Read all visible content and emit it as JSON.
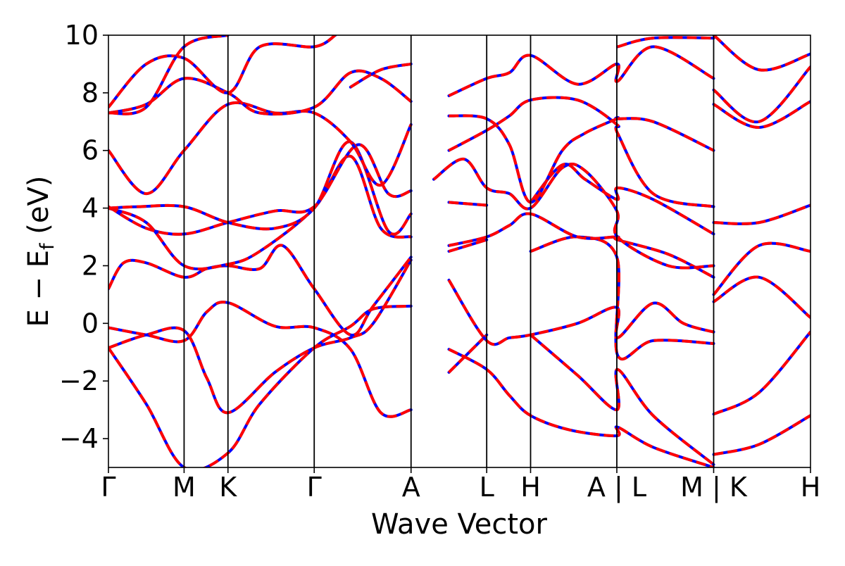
{
  "chart_data": {
    "type": "line",
    "xlabel": "Wave Vector",
    "ylabel_main": "E − E",
    "ylabel_sub": "f",
    "ylabel_unit": " (eV)",
    "ylim": [
      -5,
      10
    ],
    "yticks": [
      -4,
      -2,
      0,
      2,
      4,
      6,
      8,
      10
    ],
    "ytick_labels": [
      "−4",
      "−2",
      "0",
      "2",
      "4",
      "6",
      "8",
      "10"
    ],
    "grid": false,
    "colors": {
      "blue": "#0000ff",
      "red": "#ff0000"
    },
    "segment_breaks": [
      4.2,
      5.3
    ],
    "kpoints": [
      {
        "label": "Γ",
        "x": 0
      },
      {
        "label": "M",
        "x": 1.0
      },
      {
        "label": "K",
        "x": 1.58
      },
      {
        "label": "Γ",
        "x": 2.72
      },
      {
        "label": "A",
        "x": 4.0
      },
      {
        "label": "L",
        "x": 5.0
      },
      {
        "label": "H",
        "x": 5.58
      },
      {
        "label": "A | L",
        "x": 6.72
      },
      {
        "label": "M | K",
        "x": 8.0
      },
      {
        "label": "H",
        "x": 9.28
      }
    ],
    "bands": [
      [
        [
          0,
          -0.85
        ],
        [
          0.5,
          -2.8
        ],
        [
          1.0,
          -5.0
        ],
        [
          1.58,
          -4.5
        ],
        [
          2.0,
          -2.8
        ],
        [
          2.72,
          -0.85
        ],
        [
          3.2,
          -0.1
        ],
        [
          3.5,
          0.5
        ],
        [
          4.0,
          0.6
        ],
        [
          4.5,
          -0.9
        ],
        [
          5.0,
          -1.6
        ],
        [
          5.3,
          -2.5
        ],
        [
          5.58,
          -3.2
        ],
        [
          6.1,
          -3.7
        ],
        [
          6.72,
          -3.9
        ],
        [
          6.73,
          -3.6
        ],
        [
          7.2,
          -4.3
        ],
        [
          8.0,
          -5.0
        ]
      ],
      [
        [
          0,
          -0.15
        ],
        [
          0.5,
          -0.4
        ],
        [
          1.0,
          -0.6
        ],
        [
          1.3,
          0.4
        ],
        [
          1.58,
          0.72
        ],
        [
          2.2,
          -0.1
        ],
        [
          2.72,
          -0.15
        ],
        [
          3.2,
          -0.9
        ],
        [
          3.6,
          -3.1
        ],
        [
          4.0,
          -3.0
        ],
        [
          4.5,
          -1.7
        ],
        [
          5.0,
          -0.4
        ],
        [
          5.58,
          -0.4
        ],
        [
          6.2,
          -1.8
        ],
        [
          6.72,
          -3.0
        ],
        [
          6.73,
          -1.6
        ],
        [
          7.2,
          -3.2
        ],
        [
          8.0,
          -4.9
        ]
      ],
      [
        [
          0,
          -0.85
        ],
        [
          0.5,
          -0.4
        ],
        [
          1.0,
          -0.25
        ],
        [
          1.3,
          -1.9
        ],
        [
          1.58,
          -3.1
        ],
        [
          2.2,
          -1.7
        ],
        [
          2.72,
          -0.85
        ],
        [
          3.2,
          -0.5
        ],
        [
          3.5,
          0.0
        ],
        [
          4.0,
          2.2
        ],
        [
          4.5,
          2.5
        ],
        [
          5.0,
          2.9
        ],
        [
          5.58,
          2.5
        ],
        [
          6.2,
          3.0
        ],
        [
          6.72,
          2.3
        ],
        [
          6.73,
          -1.1
        ],
        [
          7.2,
          -0.6
        ],
        [
          8.0,
          -0.7
        ]
      ],
      [
        [
          0,
          1.2
        ],
        [
          0.2,
          2.1
        ],
        [
          0.5,
          2.1
        ],
        [
          1.0,
          1.6
        ],
        [
          1.3,
          1.9
        ],
        [
          1.58,
          2.0
        ],
        [
          2.0,
          1.9
        ],
        [
          2.3,
          2.7
        ],
        [
          2.72,
          1.2
        ],
        [
          3.2,
          -0.4
        ],
        [
          3.5,
          0.6
        ],
        [
          4.0,
          2.3
        ],
        [
          4.5,
          1.5
        ],
        [
          5.0,
          -0.6
        ],
        [
          5.3,
          -0.5
        ],
        [
          5.58,
          -0.4
        ],
        [
          6.2,
          0.0
        ],
        [
          6.72,
          0.55
        ],
        [
          6.73,
          -0.5
        ],
        [
          7.2,
          0.7
        ],
        [
          7.6,
          0.0
        ],
        [
          8.0,
          -0.3
        ]
      ],
      [
        [
          0,
          4.0
        ],
        [
          0.5,
          3.5
        ],
        [
          1.0,
          2.0
        ],
        [
          1.58,
          2.05
        ],
        [
          2.0,
          2.5
        ],
        [
          2.72,
          4.0
        ],
        [
          3.2,
          5.8
        ],
        [
          3.6,
          3.3
        ],
        [
          4.0,
          3.0
        ],
        [
          4.5,
          2.7
        ],
        [
          5.0,
          3.0
        ],
        [
          5.3,
          3.4
        ],
        [
          5.58,
          3.8
        ],
        [
          6.2,
          3.0
        ],
        [
          6.72,
          3.0
        ],
        [
          6.73,
          2.9
        ],
        [
          7.4,
          2.4
        ],
        [
          8.0,
          1.6
        ]
      ],
      [
        [
          0,
          4.05
        ],
        [
          0.5,
          3.3
        ],
        [
          1.0,
          3.1
        ],
        [
          1.58,
          3.5
        ],
        [
          2.2,
          3.9
        ],
        [
          2.72,
          4.05
        ],
        [
          3.3,
          6.2
        ],
        [
          3.7,
          4.5
        ],
        [
          4.0,
          4.6
        ],
        [
          4.3,
          5.0
        ],
        [
          4.7,
          5.7
        ],
        [
          5.0,
          4.7
        ],
        [
          5.3,
          4.5
        ],
        [
          5.58,
          4.0
        ],
        [
          6.0,
          5.4
        ],
        [
          6.3,
          5.3
        ],
        [
          6.72,
          3.9
        ],
        [
          6.73,
          3.0
        ],
        [
          7.4,
          2.0
        ],
        [
          8.0,
          2.0
        ]
      ],
      [
        [
          0,
          4.0
        ],
        [
          0.4,
          4.05
        ],
        [
          1.0,
          4.05
        ],
        [
          1.58,
          3.5
        ],
        [
          2.2,
          3.3
        ],
        [
          2.72,
          4.0
        ],
        [
          3.2,
          6.3
        ],
        [
          3.7,
          3.2
        ],
        [
          4.0,
          3.8
        ],
        [
          4.5,
          4.2
        ],
        [
          5.0,
          4.1
        ],
        [
          5.58,
          4.2
        ],
        [
          6.0,
          5.5
        ],
        [
          6.3,
          5.0
        ],
        [
          6.72,
          4.3
        ],
        [
          6.73,
          4.7
        ],
        [
          7.2,
          4.3
        ],
        [
          8.0,
          3.1
        ]
      ],
      [
        [
          0,
          6.0
        ],
        [
          0.5,
          4.5
        ],
        [
          1.0,
          6.0
        ],
        [
          1.58,
          7.6
        ],
        [
          2.2,
          7.3
        ],
        [
          2.72,
          7.3
        ],
        [
          3.2,
          6.3
        ],
        [
          3.6,
          4.8
        ],
        [
          4.0,
          6.9
        ],
        [
          4.5,
          6.0
        ],
        [
          5.0,
          6.7
        ],
        [
          5.3,
          7.2
        ],
        [
          5.58,
          7.75
        ],
        [
          6.2,
          7.75
        ],
        [
          6.72,
          6.9
        ],
        [
          6.73,
          6.6
        ],
        [
          7.2,
          4.5
        ],
        [
          8.0,
          4.05
        ]
      ],
      [
        [
          0,
          7.3
        ],
        [
          0.5,
          7.6
        ],
        [
          1.0,
          8.5
        ],
        [
          1.58,
          8.0
        ],
        [
          2.0,
          7.3
        ],
        [
          2.72,
          7.5
        ],
        [
          3.2,
          8.7
        ],
        [
          3.6,
          8.5
        ],
        [
          4.0,
          7.7
        ],
        [
          4.5,
          7.2
        ],
        [
          5.0,
          7.1
        ],
        [
          5.3,
          6.2
        ],
        [
          5.58,
          4.2
        ],
        [
          6.0,
          6.0
        ],
        [
          6.3,
          6.6
        ],
        [
          6.72,
          7.1
        ],
        [
          6.73,
          7.1
        ],
        [
          7.2,
          7.0
        ],
        [
          8.0,
          6.0
        ]
      ],
      [
        [
          0,
          7.5
        ],
        [
          0.5,
          9.0
        ],
        [
          1.0,
          9.2
        ],
        [
          1.58,
          8.0
        ],
        [
          2.0,
          9.6
        ],
        [
          2.72,
          9.6
        ],
        [
          3.0,
          10.0
        ]
      ],
      [
        [
          0,
          7.3
        ],
        [
          0.5,
          7.5
        ],
        [
          1.0,
          9.6
        ],
        [
          1.58,
          10.0
        ]
      ],
      [
        [
          3.2,
          8.2
        ],
        [
          3.6,
          8.8
        ],
        [
          4.0,
          9.0
        ],
        [
          4.5,
          7.9
        ],
        [
          5.0,
          8.5
        ],
        [
          5.3,
          8.7
        ],
        [
          5.58,
          9.3
        ],
        [
          6.2,
          8.3
        ],
        [
          6.72,
          9.0
        ],
        [
          6.73,
          8.4
        ],
        [
          7.2,
          9.6
        ],
        [
          8.0,
          8.5
        ]
      ],
      [
        [
          6.73,
          9.6
        ],
        [
          7.2,
          9.9
        ],
        [
          8.0,
          9.9
        ]
      ],
      [
        [
          8.0,
          -3.15
        ],
        [
          8.6,
          -2.4
        ],
        [
          9.28,
          -0.3
        ]
      ],
      [
        [
          8.0,
          -4.55
        ],
        [
          8.6,
          -4.2
        ],
        [
          9.28,
          -3.2
        ]
      ],
      [
        [
          8.0,
          0.75
        ],
        [
          8.6,
          1.6
        ],
        [
          9.28,
          0.2
        ]
      ],
      [
        [
          8.0,
          3.5
        ],
        [
          8.6,
          3.5
        ],
        [
          9.28,
          4.1
        ]
      ],
      [
        [
          8.0,
          7.6
        ],
        [
          8.6,
          6.8
        ],
        [
          9.28,
          7.7
        ]
      ],
      [
        [
          8.0,
          8.1
        ],
        [
          8.6,
          7.0
        ],
        [
          9.28,
          8.9
        ]
      ],
      [
        [
          8.0,
          10.0
        ],
        [
          8.6,
          8.8
        ],
        [
          9.28,
          9.35
        ]
      ],
      [
        [
          8.0,
          1.0
        ],
        [
          8.6,
          2.7
        ],
        [
          9.28,
          2.5
        ]
      ]
    ]
  }
}
